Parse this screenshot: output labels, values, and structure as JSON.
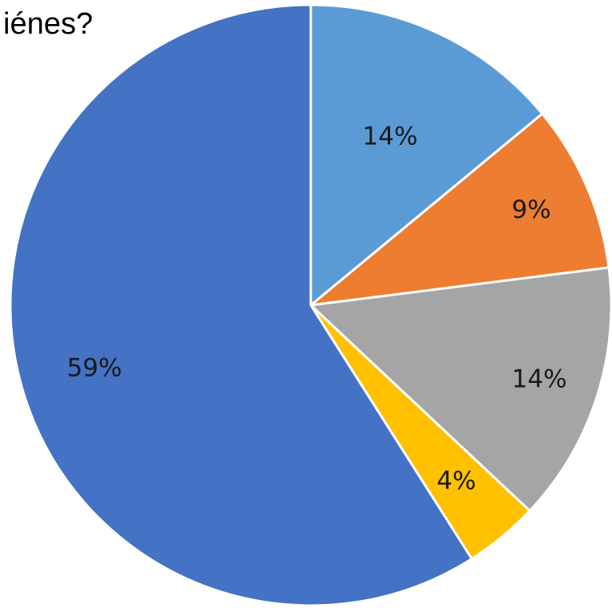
{
  "chart_data": {
    "type": "pie",
    "title": "iénes?",
    "start_angle_deg": 0,
    "direction": "clockwise",
    "slices": [
      {
        "label": "14%",
        "value": 14,
        "color": "#5B9BD5"
      },
      {
        "label": "9%",
        "value": 9,
        "color": "#ED7D31"
      },
      {
        "label": "14%",
        "value": 14,
        "color": "#A5A5A5"
      },
      {
        "label": "4%",
        "value": 4,
        "color": "#FFC000"
      },
      {
        "label": "59%",
        "value": 59,
        "color": "#4472C4"
      }
    ]
  }
}
